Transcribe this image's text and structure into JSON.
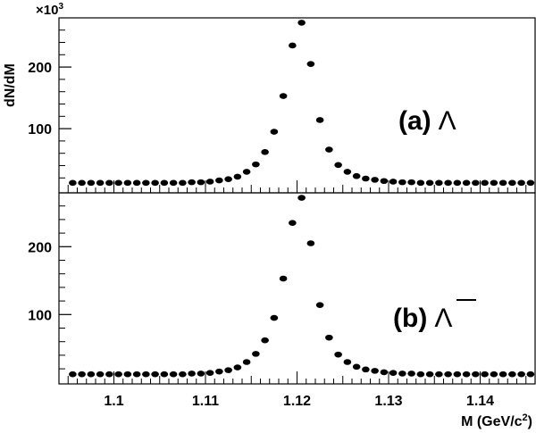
{
  "chart_data": [
    {
      "type": "scatter",
      "panel_label": "(a)",
      "particle": "Λ",
      "ylabel": "dN/dM",
      "y_multiplier": "×10",
      "y_multiplier_exp": "3",
      "xlim": [
        1.094,
        1.146
      ],
      "ylim": [
        10,
        277
      ],
      "yticks": [
        100,
        200
      ],
      "series": [
        {
          "x": [
            1.0955,
            1.0965,
            1.0975,
            1.0985,
            1.0995,
            1.1005,
            1.1015,
            1.1025,
            1.1035,
            1.1045,
            1.1055,
            1.1065,
            1.1075,
            1.1085,
            1.1095,
            1.1105,
            1.1115,
            1.1125,
            1.1135,
            1.1145,
            1.1155,
            1.1165,
            1.1175,
            1.1185,
            1.1195,
            1.1205,
            1.1215,
            1.1225,
            1.1235,
            1.1245,
            1.1255,
            1.1265,
            1.1275,
            1.1285,
            1.1295,
            1.1305,
            1.1315,
            1.1325,
            1.1335,
            1.1345,
            1.1355,
            1.1365,
            1.1375,
            1.1385,
            1.1395,
            1.1405,
            1.1415,
            1.1425,
            1.1435,
            1.1445,
            1.1455
          ],
          "y": [
            12,
            12,
            12,
            12,
            12,
            12,
            12,
            12,
            12,
            12,
            12,
            12,
            12,
            13,
            13,
            14,
            16,
            18,
            22,
            30,
            42,
            62,
            95,
            153,
            235,
            272,
            205,
            114,
            66,
            41,
            30,
            23,
            19,
            17,
            15,
            14,
            13,
            13,
            12,
            12,
            12,
            12,
            12,
            12,
            12,
            12,
            12,
            12,
            12,
            12,
            12
          ]
        }
      ]
    },
    {
      "type": "scatter",
      "panel_label": "(b)",
      "particle": "Λ",
      "xlabel": "M (GeV/c",
      "xlabel_exp": "2",
      "xlabel_end": ")",
      "xlim": [
        1.094,
        1.146
      ],
      "ylim": [
        10,
        277
      ],
      "yticks": [
        100,
        200
      ],
      "xticks": [
        1.1,
        1.11,
        1.12,
        1.13,
        1.14
      ],
      "xtick_labels": [
        "1.1",
        "1.11",
        "1.12",
        "1.13",
        "1.14"
      ],
      "series": [
        {
          "x": [
            1.0955,
            1.0965,
            1.0975,
            1.0985,
            1.0995,
            1.1005,
            1.1015,
            1.1025,
            1.1035,
            1.1045,
            1.1055,
            1.1065,
            1.1075,
            1.1085,
            1.1095,
            1.1105,
            1.1115,
            1.1125,
            1.1135,
            1.1145,
            1.1155,
            1.1165,
            1.1175,
            1.1185,
            1.1195,
            1.1205,
            1.1215,
            1.1225,
            1.1235,
            1.1245,
            1.1255,
            1.1265,
            1.1275,
            1.1285,
            1.1295,
            1.1305,
            1.1315,
            1.1325,
            1.1335,
            1.1345,
            1.1355,
            1.1365,
            1.1375,
            1.1385,
            1.1395,
            1.1405,
            1.1415,
            1.1425,
            1.1435,
            1.1445,
            1.1455
          ],
          "y": [
            12,
            12,
            12,
            12,
            12,
            12,
            12,
            12,
            12,
            12,
            12,
            12,
            12,
            13,
            13,
            14,
            16,
            18,
            22,
            30,
            42,
            62,
            95,
            153,
            235,
            272,
            205,
            114,
            66,
            41,
            30,
            23,
            19,
            17,
            15,
            14,
            13,
            13,
            12,
            12,
            12,
            12,
            12,
            12,
            12,
            12,
            12,
            12,
            12,
            12,
            12
          ]
        }
      ]
    }
  ]
}
